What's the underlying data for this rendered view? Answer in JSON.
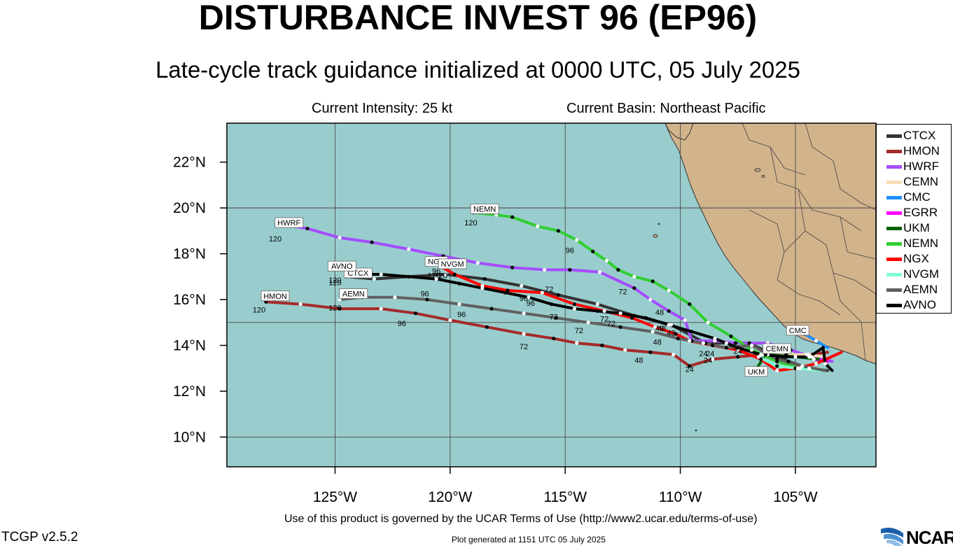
{
  "title": "DISTURBANCE INVEST 96 (EP96)",
  "subtitle": "Late-cycle track guidance initialized at 0000 UTC, 05 July 2025",
  "current_intensity": "Current Intensity: 25 kt",
  "current_basin": "Current Basin: Northeast Pacific",
  "axes": {
    "lat_labels": [
      "22°N",
      "20°N",
      "18°N",
      "16°N",
      "14°N",
      "12°N",
      "10°N"
    ],
    "lon_labels": [
      "125°W",
      "120°W",
      "115°W",
      "110°W",
      "105°W"
    ]
  },
  "map_extent": {
    "lon_min": -129.7,
    "lon_max": -101.5,
    "lat_min": 8.7,
    "lat_max": 23.7
  },
  "colors": {
    "ocean": "#99cdcd",
    "land": "#d2b48c",
    "grid": "#555555"
  },
  "models": [
    {
      "name": "CTCX",
      "color": "#333333",
      "track": [
        [
          -103.6,
          12.9
        ],
        [
          -104.4,
          13.0
        ],
        [
          -105.3,
          13.3
        ],
        [
          -106.2,
          13.7
        ],
        [
          -107.0,
          14.1
        ],
        [
          -108.0,
          14.1
        ],
        [
          -108.9,
          14.1
        ],
        [
          -110.4,
          14.9
        ],
        [
          -112.0,
          15.3
        ],
        [
          -113.6,
          15.8
        ],
        [
          -115.3,
          16.2
        ],
        [
          -116.9,
          16.6
        ],
        [
          -118.5,
          16.9
        ],
        [
          -120.2,
          17.1
        ],
        [
          -121.8,
          17.0
        ],
        [
          -123.3,
          16.9
        ],
        [
          -124.5,
          17.0
        ]
      ],
      "label": "CTCX",
      "label_pos": [
        -124.0,
        17.1
      ],
      "hour_marks": [
        [
          "24",
          -108.7,
          13.9
        ],
        [
          "72",
          -115.5,
          15.5
        ],
        [
          "96",
          -121.1,
          16.5
        ],
        [
          "120",
          -125.0,
          17.0
        ]
      ]
    },
    {
      "name": "HMON",
      "color": "#a52a2a",
      "track": [
        [
          -103.6,
          13.7
        ],
        [
          -104.4,
          13.6
        ],
        [
          -105.4,
          13.6
        ],
        [
          -106.4,
          13.6
        ],
        [
          -107.5,
          13.5
        ],
        [
          -108.6,
          13.4
        ],
        [
          -109.6,
          13.1
        ],
        [
          -110.3,
          13.6
        ],
        [
          -111.3,
          13.7
        ],
        [
          -112.4,
          13.8
        ],
        [
          -113.4,
          14.0
        ],
        [
          -114.5,
          14.1
        ],
        [
          -115.5,
          14.3
        ],
        [
          -116.8,
          14.5
        ],
        [
          -118.4,
          14.8
        ],
        [
          -120.0,
          15.1
        ],
        [
          -121.5,
          15.4
        ],
        [
          -123.0,
          15.6
        ],
        [
          -124.8,
          15.6
        ],
        [
          -126.5,
          15.8
        ],
        [
          -128.0,
          15.9
        ]
      ],
      "label": "HMON",
      "label_pos": [
        -127.6,
        16.1
      ],
      "hour_marks": [
        [
          "24",
          -109.6,
          13.2
        ],
        [
          "48",
          -111.8,
          13.6
        ],
        [
          "72",
          -116.8,
          14.2
        ],
        [
          "96",
          -122.1,
          15.2
        ],
        [
          "120",
          -128.3,
          15.8
        ]
      ]
    },
    {
      "name": "HWRF",
      "color": "#a54cff",
      "track": [
        [
          -103.4,
          13.3
        ],
        [
          -104.3,
          13.5
        ],
        [
          -105.2,
          13.8
        ],
        [
          -106.2,
          14.1
        ],
        [
          -107.6,
          14.1
        ],
        [
          -108.5,
          14.2
        ],
        [
          -109.5,
          14.2
        ],
        [
          -109.8,
          15.1
        ],
        [
          -110.5,
          15.5
        ],
        [
          -111.3,
          16.0
        ],
        [
          -112.0,
          16.5
        ],
        [
          -113.5,
          17.2
        ],
        [
          -114.8,
          17.3
        ],
        [
          -115.9,
          17.3
        ],
        [
          -117.3,
          17.4
        ],
        [
          -118.8,
          17.6
        ],
        [
          -120.3,
          17.9
        ],
        [
          -121.8,
          18.2
        ],
        [
          -123.4,
          18.5
        ],
        [
          -124.8,
          18.7
        ],
        [
          -126.2,
          19.1
        ],
        [
          -127.4,
          19.3
        ]
      ],
      "label": "HWRF",
      "label_pos": [
        -127.0,
        19.3
      ],
      "hour_marks": [
        [
          "24",
          -109.0,
          13.9
        ],
        [
          "48",
          -110.8,
          15.0
        ],
        [
          "72",
          -115.7,
          16.7
        ],
        [
          "96",
          -120.6,
          17.5
        ],
        [
          "120",
          -127.6,
          18.9
        ]
      ]
    },
    {
      "name": "CEMN",
      "color": "#f5deb3",
      "track": [
        [
          -103.7,
          13.5
        ],
        [
          -104.5,
          13.6
        ],
        [
          -105.4,
          13.6
        ],
        [
          -106.2,
          13.6
        ]
      ],
      "label": "CEMN",
      "label_pos": [
        -105.8,
        13.8
      ],
      "hour_marks": []
    },
    {
      "name": "CMC",
      "color": "#1e90ff",
      "track": [
        [
          -103.6,
          13.9
        ],
        [
          -104.1,
          14.2
        ],
        [
          -104.6,
          14.5
        ]
      ],
      "label": "CMC",
      "label_pos": [
        -104.9,
        14.6
      ],
      "hour_marks": []
    },
    {
      "name": "EGRR",
      "color": "#ff00ff",
      "track": [
        [
          -103.6,
          13.3
        ],
        [
          -104.2,
          13.4
        ]
      ],
      "label": "",
      "label_pos": [
        -104.0,
        13.4
      ],
      "hour_marks": []
    },
    {
      "name": "UKM",
      "color": "#006400",
      "track": [
        [
          -104.0,
          13.4
        ],
        [
          -105.0,
          13.5
        ],
        [
          -106.3,
          13.6
        ],
        [
          -106.8,
          12.8
        ]
      ],
      "label": "UKM",
      "label_pos": [
        -106.7,
        12.8
      ],
      "hour_marks": []
    },
    {
      "name": "NEMN",
      "color": "#32cd32",
      "track": [
        [
          -103.8,
          12.9
        ],
        [
          -104.8,
          13.0
        ],
        [
          -105.8,
          13.3
        ],
        [
          -106.9,
          13.8
        ],
        [
          -107.8,
          14.4
        ],
        [
          -108.8,
          15.0
        ],
        [
          -109.6,
          15.8
        ],
        [
          -110.5,
          16.4
        ],
        [
          -111.2,
          16.8
        ],
        [
          -112.0,
          17.0
        ],
        [
          -112.7,
          17.3
        ],
        [
          -113.2,
          17.7
        ],
        [
          -113.8,
          18.1
        ],
        [
          -114.5,
          18.6
        ],
        [
          -115.3,
          19.0
        ],
        [
          -116.2,
          19.2
        ],
        [
          -117.3,
          19.6
        ],
        [
          -118.0,
          19.7
        ],
        [
          -119.0,
          19.8
        ]
      ],
      "label": "NEMN",
      "label_pos": [
        -118.5,
        19.9
      ],
      "hour_marks": [
        [
          "48",
          -110.9,
          15.7
        ],
        [
          "72",
          -112.5,
          16.6
        ],
        [
          "96",
          -114.8,
          18.4
        ],
        [
          "120",
          -119.1,
          19.6
        ]
      ]
    },
    {
      "name": "NGX",
      "color": "#ff0000",
      "track": [
        [
          -103.0,
          13.7
        ],
        [
          -104.1,
          13.2
        ],
        [
          -105.0,
          13.0
        ],
        [
          -105.8,
          12.9
        ],
        [
          -106.5,
          13.4
        ],
        [
          -107.5,
          13.8
        ],
        [
          -108.6,
          14.0
        ],
        [
          -109.6,
          14.2
        ],
        [
          -110.2,
          14.5
        ],
        [
          -111.1,
          14.8
        ],
        [
          -112.1,
          15.2
        ],
        [
          -113.3,
          15.5
        ],
        [
          -114.6,
          15.8
        ],
        [
          -116.0,
          16.3
        ],
        [
          -117.5,
          16.4
        ],
        [
          -118.6,
          16.6
        ],
        [
          -119.8,
          17.1
        ],
        [
          -120.5,
          17.5
        ]
      ],
      "label": "NGX",
      "label_pos": [
        -120.6,
        17.6
      ],
      "hour_marks": [
        [
          "48",
          -110.4,
          14.8
        ],
        [
          "72",
          -113.0,
          15.2
        ],
        [
          "96",
          -116.5,
          16.1
        ],
        [
          "120",
          -120.7,
          17.3
        ]
      ]
    },
    {
      "name": "NVGM",
      "color": "#7fffd4",
      "track": [
        [
          -103.9,
          12.9
        ],
        [
          -104.9,
          13.0
        ],
        [
          -105.8,
          13.1
        ],
        [
          -106.6,
          13.5
        ]
      ],
      "label": "NVGM",
      "label_pos": [
        -119.9,
        17.5
      ],
      "hour_marks": [
        [
          "120",
          -120.4,
          17.3
        ]
      ]
    },
    {
      "name": "AEMN",
      "color": "#606060",
      "track": [
        [
          -103.7,
          12.9
        ],
        [
          -104.7,
          13.1
        ],
        [
          -105.8,
          13.4
        ],
        [
          -106.9,
          14.0
        ],
        [
          -108.0,
          13.9
        ],
        [
          -109.0,
          14.1
        ],
        [
          -110.1,
          14.3
        ],
        [
          -111.2,
          14.6
        ],
        [
          -112.6,
          14.8
        ],
        [
          -114.0,
          15.0
        ],
        [
          -115.4,
          15.2
        ],
        [
          -116.8,
          15.4
        ],
        [
          -118.2,
          15.6
        ],
        [
          -119.6,
          15.8
        ],
        [
          -121.0,
          16.0
        ],
        [
          -122.4,
          16.1
        ],
        [
          -123.8,
          16.1
        ],
        [
          -124.8,
          16.0
        ]
      ],
      "label": "AEMN",
      "label_pos": [
        -124.2,
        16.2
      ],
      "hour_marks": [
        [
          "24",
          -108.8,
          13.6
        ],
        [
          "48",
          -111.0,
          14.4
        ],
        [
          "72",
          -114.4,
          14.9
        ],
        [
          "96",
          -119.5,
          15.6
        ],
        [
          "120",
          -125.0,
          15.9
        ]
      ]
    },
    {
      "name": "AVNO",
      "color": "#000000",
      "track": [
        [
          -103.4,
          12.9
        ],
        [
          -103.7,
          13.2
        ],
        [
          -103.8,
          13.9
        ],
        [
          -104.4,
          13.5
        ],
        [
          -105.4,
          13.5
        ],
        [
          -106.5,
          13.6
        ],
        [
          -107.5,
          13.9
        ],
        [
          -108.5,
          14.3
        ],
        [
          -109.5,
          14.6
        ],
        [
          -110.5,
          14.9
        ],
        [
          -111.5,
          15.2
        ],
        [
          -112.6,
          15.4
        ],
        [
          -113.6,
          15.5
        ],
        [
          -114.6,
          15.6
        ],
        [
          -115.6,
          15.8
        ],
        [
          -116.6,
          16.1
        ],
        [
          -117.6,
          16.3
        ],
        [
          -118.6,
          16.5
        ],
        [
          -119.6,
          16.7
        ],
        [
          -120.6,
          16.9
        ],
        [
          -121.8,
          17.0
        ],
        [
          -123.0,
          17.1
        ],
        [
          -124.4,
          17.1
        ]
      ],
      "label": "AVNO",
      "label_pos": [
        -124.7,
        17.4
      ],
      "hour_marks": [
        [
          "24",
          -107.5,
          14.0
        ],
        [
          "48",
          -110.9,
          15.0
        ],
        [
          "72",
          -113.3,
          15.4
        ],
        [
          "96",
          -116.8,
          16.3
        ],
        [
          "120",
          -125.0,
          17.1
        ]
      ]
    }
  ],
  "legend": [
    {
      "name": "CTCX",
      "color": "#333333"
    },
    {
      "name": "HMON",
      "color": "#a52a2a"
    },
    {
      "name": "HWRF",
      "color": "#a54cff"
    },
    {
      "name": "CEMN",
      "color": "#f5deb3"
    },
    {
      "name": "CMC",
      "color": "#1e90ff"
    },
    {
      "name": "EGRR",
      "color": "#ff00ff"
    },
    {
      "name": "UKM",
      "color": "#006400"
    },
    {
      "name": "NEMN",
      "color": "#32cd32"
    },
    {
      "name": "NGX",
      "color": "#ff0000"
    },
    {
      "name": "NVGM",
      "color": "#7fffd4"
    },
    {
      "name": "AEMN",
      "color": "#606060"
    },
    {
      "name": "AVNO",
      "color": "#000000"
    }
  ],
  "terms": "Use of this product is governed by the UCAR Terms of Use (http://www2.ucar.edu/terms-of-use)",
  "version": "TCGP v2.5.2",
  "generated": "Plot generated at 1151 UTC   05 July 2025",
  "logo_text": "NCAR"
}
